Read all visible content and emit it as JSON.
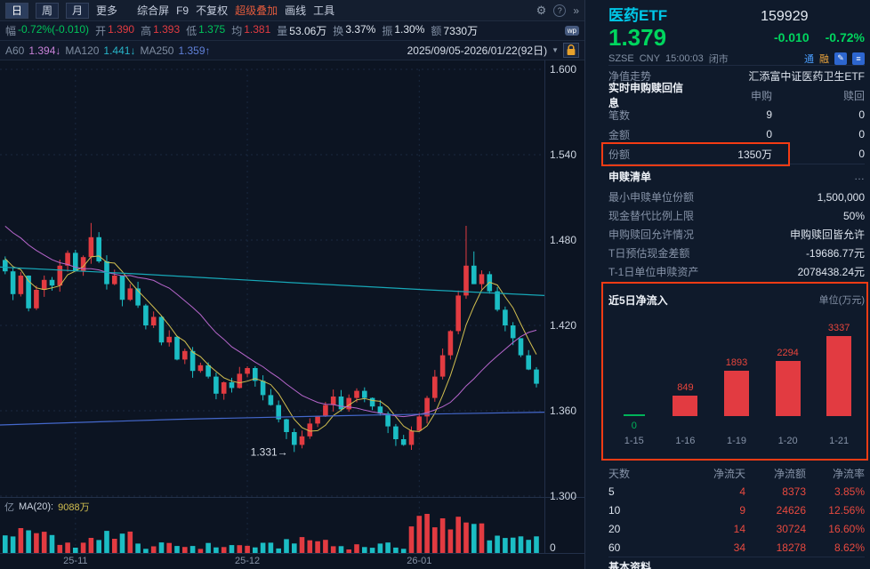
{
  "icons": {
    "gear": "⚙",
    "help": "?",
    "chevron": "»",
    "dropdown": "▼",
    "more": "…",
    "edit": "✎",
    "list": "≡"
  },
  "toolbar": {
    "period_tabs": [
      {
        "label": "日",
        "active": true
      },
      {
        "label": "周",
        "active": false
      },
      {
        "label": "月",
        "active": false
      }
    ],
    "more_label": "更多",
    "menu_items": [
      "综合屏",
      "F9",
      "不复权",
      "超级叠加",
      "画线",
      "工具"
    ]
  },
  "quote_bar": {
    "fields": [
      {
        "label": "幅",
        "value": "-0.72%(-0.010)",
        "color": "green"
      },
      {
        "label": "开",
        "value": "1.390",
        "color": "red"
      },
      {
        "label": "高",
        "value": "1.393",
        "color": "red"
      },
      {
        "label": "低",
        "value": "1.375",
        "color": "green"
      },
      {
        "label": "均",
        "value": "1.381",
        "color": "red"
      },
      {
        "label": "量",
        "value": "53.06万",
        "color": "white"
      },
      {
        "label": "换",
        "value": "3.37%",
        "color": "white"
      },
      {
        "label": "振",
        "value": "1.30%",
        "color": "white"
      },
      {
        "label": "额",
        "value": "7330万",
        "color": "white"
      }
    ],
    "wp_badge": "wp"
  },
  "ma_bar": {
    "items": [
      {
        "label": "A60",
        "value": "1.394↓"
      },
      {
        "label": "MA120",
        "value": "1.441↓"
      },
      {
        "label": "MA250",
        "value": "1.359↑"
      }
    ],
    "date_range": "2025/09/05-2026/01/22(92日)"
  },
  "chart": {
    "y_axis": [
      "1.600",
      "1.540",
      "1.480",
      "1.420",
      "1.360",
      "1.300"
    ],
    "y_min": 1.3,
    "y_max": 1.6,
    "x_labels": [
      "25-11",
      "25-12",
      "26-01"
    ],
    "low_annotation": "1.331→",
    "volume_label_unit": "亿",
    "volume_ma_label": "MA(20):",
    "volume_ma_value": "9088万",
    "volume_zero_label": "0",
    "chart_data": {
      "type": "candlestick",
      "y_range": [
        1.3,
        1.6
      ],
      "low_marker": 1.331,
      "approx_closes": [
        1.458,
        1.442,
        1.455,
        1.432,
        1.445,
        1.452,
        1.448,
        1.462,
        1.471,
        1.458,
        1.468,
        1.482,
        1.465,
        1.449,
        1.455,
        1.438,
        1.446,
        1.434,
        1.42,
        1.426,
        1.408,
        1.412,
        1.396,
        1.402,
        1.388,
        1.392,
        1.384,
        1.372,
        1.38,
        1.376,
        1.386,
        1.39,
        1.381,
        1.371,
        1.364,
        1.354,
        1.345,
        1.336,
        1.342,
        1.351,
        1.356,
        1.364,
        1.37,
        1.361,
        1.369,
        1.374,
        1.369,
        1.363,
        1.358,
        1.349,
        1.34,
        1.336,
        1.346,
        1.356,
        1.369,
        1.384,
        1.399,
        1.416,
        1.441,
        1.462,
        1.449,
        1.456,
        1.444,
        1.431,
        1.42,
        1.411,
        1.399,
        1.389,
        1.379
      ]
    }
  },
  "panel": {
    "name": "医药ETF",
    "code": "159929",
    "price": "1.379",
    "change": "-0.010",
    "change_pct": "-0.72%",
    "exchange": "SZSE",
    "currency": "CNY",
    "time": "15:00:03",
    "market_status": "闭市",
    "tag_tong": "通",
    "tag_rong": "融",
    "nav_label": "净值走势",
    "nav_value": "汇添富中证医药卫生ETF",
    "subscription": {
      "title": "实时申购赎回信息",
      "col_buy": "申购",
      "col_redeem": "赎回",
      "rows": [
        {
          "label": "笔数",
          "buy": "9",
          "redeem": "0"
        },
        {
          "label": "金额",
          "buy": "0",
          "redeem": "0"
        },
        {
          "label": "份额",
          "buy": "1350万",
          "redeem": "0"
        }
      ]
    },
    "redemption_list": {
      "title": "申赎清单",
      "rows": [
        {
          "label": "最小申赎单位份额",
          "value": "1,500,000"
        },
        {
          "label": "现金替代比例上限",
          "value": "50%"
        },
        {
          "label": "申购赎回允许情况",
          "value": "申购赎回皆允许"
        },
        {
          "label": "T日预估现金差额",
          "value": "-19686.77元"
        },
        {
          "label": "T-1日单位申赎资产",
          "value": "2078438.24元"
        }
      ]
    },
    "net_inflow": {
      "title": "近5日净流入",
      "unit": "单位(万元)",
      "chart_data": {
        "type": "bar",
        "categories": [
          "1-15",
          "1-16",
          "1-19",
          "1-20",
          "1-21"
        ],
        "values": [
          0,
          849,
          1893,
          2294,
          3337
        ],
        "bar_color": "#e23b41",
        "zero_color": "#00b35a"
      }
    },
    "flow_table": {
      "headers": [
        "天数",
        "净流天",
        "净流额",
        "净流率"
      ],
      "rows": [
        {
          "days": "5",
          "net_days": "4",
          "net_amount": "8373",
          "net_rate": "3.85%"
        },
        {
          "days": "10",
          "net_days": "9",
          "net_amount": "24626",
          "net_rate": "12.56%"
        },
        {
          "days": "20",
          "net_days": "14",
          "net_amount": "30724",
          "net_rate": "16.60%"
        },
        {
          "days": "60",
          "net_days": "34",
          "net_amount": "18278",
          "net_rate": "8.62%"
        }
      ]
    },
    "footer_title": "基本资料"
  }
}
